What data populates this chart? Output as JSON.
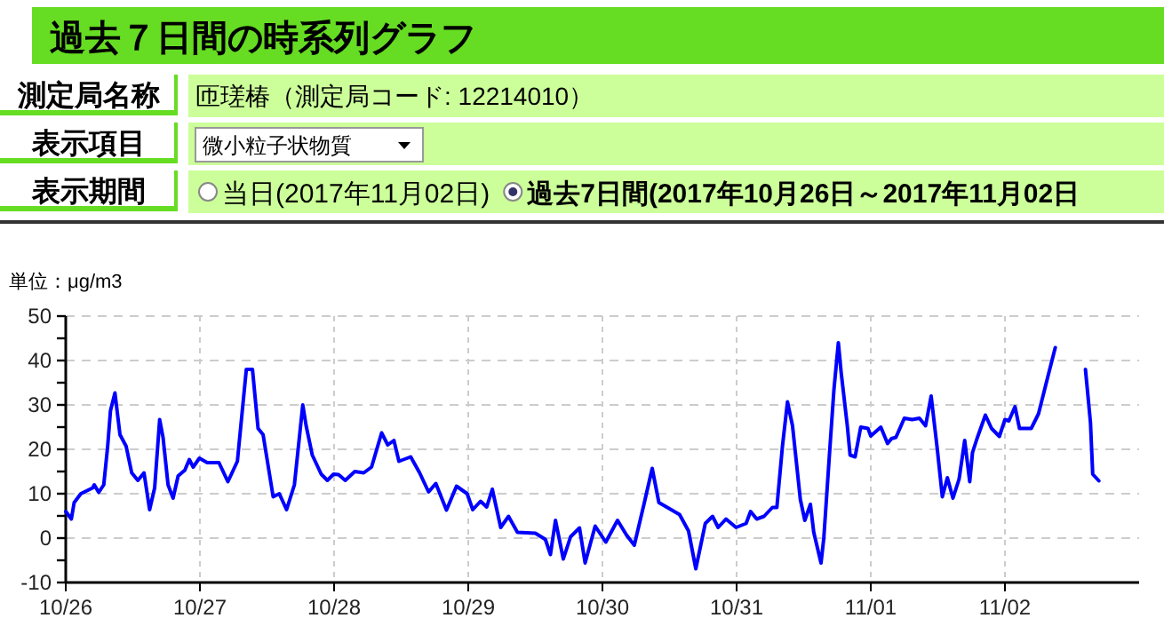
{
  "chart_data": {
    "type": "line",
    "title": "過去７日間の時系列グラフ",
    "annotations": [
      "測定局名称",
      "匝瑳椿（測定局コード: 12214010）",
      "表示項目",
      "微小粒子状物質",
      "表示期間",
      "当日(2017年11月02日)",
      "過去7日間(2017年10月26日～2017年11月02日"
    ],
    "ylabel": "単位：μg/m3",
    "xlim": [
      "2017-10-26T00:00",
      "2017-11-03T00:00"
    ],
    "xticks": [
      {
        "value": "2017-10-26",
        "label": "10/26"
      },
      {
        "value": "2017-10-27",
        "label": "10/27"
      },
      {
        "value": "2017-10-28",
        "label": "10/28"
      },
      {
        "value": "2017-10-29",
        "label": "10/29"
      },
      {
        "value": "2017-10-30",
        "label": "10/30"
      },
      {
        "value": "2017-10-31",
        "label": "10/31"
      },
      {
        "value": "2017-11-01",
        "label": "11/01"
      },
      {
        "value": "2017-11-02",
        "label": "11/02"
      }
    ],
    "ylim": [
      -10,
      50
    ],
    "yticks": [
      -10,
      {
        "value": -5,
        "label": null
      },
      0,
      {
        "value": 5,
        "label": null
      },
      10,
      {
        "value": 15,
        "label": null
      },
      20,
      {
        "value": 25,
        "label": null
      },
      30,
      {
        "value": 35,
        "label": null
      },
      40,
      {
        "value": 45,
        "label": null
      },
      50
    ],
    "grid": true,
    "line_style": "solid",
    "series": [
      {
        "color": "#0000ff",
        "x": [
          "2017-10-26T00:00",
          "2017-10-26T01:00",
          "2017-10-26T01:30",
          "2017-10-26T02:42",
          "2017-10-26T04:48",
          "2017-10-26T05:06",
          "2017-10-26T05:54",
          "2017-10-26T06:48",
          "2017-10-26T07:30",
          "2017-10-26T08:00",
          "2017-10-26T08:48",
          "2017-10-26T09:42",
          "2017-10-26T10:48",
          "2017-10-26T11:48",
          "2017-10-26T12:54",
          "2017-10-26T14:00",
          "2017-10-26T15:00",
          "2017-10-26T15:54",
          "2017-10-26T16:48",
          "2017-10-26T17:24",
          "2017-10-26T18:18",
          "2017-10-26T19:12",
          "2017-10-26T20:06",
          "2017-10-26T21:18",
          "2017-10-26T22:06",
          "2017-10-26T22:48",
          "2017-10-26T23:54",
          "2017-10-27T01:18",
          "2017-10-27T03:24",
          "2017-10-27T05:00",
          "2017-10-27T06:42",
          "2017-10-27T08:18",
          "2017-10-27T09:24",
          "2017-10-27T10:24",
          "2017-10-27T11:18",
          "2017-10-27T13:06",
          "2017-10-27T14:12",
          "2017-10-27T15:30",
          "2017-10-27T16:54",
          "2017-10-27T18:24",
          "2017-10-27T19:00",
          "2017-10-27T20:06",
          "2017-10-27T21:42",
          "2017-10-27T22:48",
          "2017-10-27T23:54",
          "2017-10-28T00:48",
          "2017-10-28T02:00",
          "2017-10-28T03:42",
          "2017-10-28T05:18",
          "2017-10-28T06:42",
          "2017-10-28T08:30",
          "2017-10-28T09:36",
          "2017-10-28T10:42",
          "2017-10-28T11:36",
          "2017-10-28T13:42",
          "2017-10-28T15:18",
          "2017-10-28T16:54",
          "2017-10-28T18:12",
          "2017-10-28T20:06",
          "2017-10-28T21:54",
          "2017-10-28T23:48",
          "2017-10-29T00:48",
          "2017-10-29T02:12",
          "2017-10-29T03:18",
          "2017-10-29T04:18",
          "2017-10-29T05:48",
          "2017-10-29T07:12",
          "2017-10-29T08:48",
          "2017-10-29T12:00",
          "2017-10-29T13:48",
          "2017-10-29T14:42",
          "2017-10-29T15:36",
          "2017-10-29T17:00",
          "2017-10-29T18:18",
          "2017-10-29T19:54",
          "2017-10-29T20:54",
          "2017-10-29T22:42",
          "2017-10-30T00:36",
          "2017-10-30T02:42",
          "2017-10-30T04:18",
          "2017-10-30T05:42",
          "2017-10-30T07:30",
          "2017-10-30T08:54",
          "2017-10-30T10:06",
          "2017-10-30T12:18",
          "2017-10-30T13:48",
          "2017-10-30T15:24",
          "2017-10-30T16:42",
          "2017-10-30T18:24",
          "2017-10-30T19:42",
          "2017-10-30T20:42",
          "2017-10-30T22:06",
          "2017-10-30T23:54",
          "2017-10-31T01:42",
          "2017-10-31T02:30",
          "2017-10-31T03:36",
          "2017-10-31T04:54",
          "2017-10-31T06:24",
          "2017-10-31T07:12",
          "2017-10-31T08:12",
          "2017-10-31T09:06",
          "2017-10-31T10:00",
          "2017-10-31T11:24",
          "2017-10-31T12:12",
          "2017-10-31T13:12",
          "2017-10-31T13:48",
          "2017-10-31T15:06",
          "2017-10-31T15:36",
          "2017-10-31T16:36",
          "2017-10-31T17:24",
          "2017-10-31T18:12",
          "2017-10-31T18:42",
          "2017-10-31T19:48",
          "2017-10-31T20:18",
          "2017-10-31T21:12",
          "2017-10-31T22:12",
          "2017-10-31T23:30",
          "2017-11-01T00:00",
          "2017-11-01T01:48",
          "2017-11-01T03:00",
          "2017-11-01T03:42",
          "2017-11-01T04:30",
          "2017-11-01T06:00",
          "2017-11-01T07:24",
          "2017-11-01T08:42",
          "2017-11-01T09:48",
          "2017-11-01T10:48",
          "2017-11-01T11:54",
          "2017-11-01T12:48",
          "2017-11-01T13:42",
          "2017-11-01T14:42",
          "2017-11-01T15:48",
          "2017-11-01T16:48",
          "2017-11-01T17:42",
          "2017-11-01T18:12",
          "2017-11-01T19:00",
          "2017-11-01T20:30",
          "2017-11-01T21:36",
          "2017-11-01T23:00",
          "2017-11-02T00:00",
          "2017-11-02T00:42",
          "2017-11-02T01:48",
          "2017-11-02T02:36",
          "2017-11-02T04:42",
          "2017-11-02T06:00",
          "2017-11-02T07:36",
          "2017-11-02T09:00",
          "2017-11-02T12:00",
          "2017-11-02T14:24",
          "2017-11-02T15:18",
          "2017-11-02T15:42",
          "2017-11-02T16:48"
        ],
        "values": [
          6,
          4.3,
          8,
          10,
          11.3,
          12,
          10.3,
          12,
          20.7,
          28.7,
          32.7,
          23.3,
          20.7,
          14.7,
          13,
          14.7,
          6.4,
          11.3,
          26.7,
          22.7,
          12,
          9,
          14,
          15.3,
          17.7,
          16,
          18,
          17,
          17,
          12.7,
          17.3,
          38,
          38,
          24.7,
          23.3,
          9.3,
          10,
          6.4,
          12,
          30,
          25.3,
          18.7,
          14.4,
          13,
          14.4,
          14.3,
          13,
          15,
          14.7,
          16,
          23.7,
          21,
          22,
          17.3,
          18.3,
          14.7,
          10.4,
          12.3,
          6.3,
          11.7,
          10,
          6.4,
          8.3,
          7,
          11,
          2.4,
          4.9,
          1.3,
          1.1,
          -0.3,
          -3.7,
          4,
          -4.7,
          0.3,
          2.3,
          -5.6,
          2.7,
          -0.9,
          4,
          0.7,
          -1.6,
          8,
          15.7,
          8,
          6.4,
          5.3,
          1.6,
          -6.9,
          3.3,
          4.9,
          2.4,
          4.3,
          2.4,
          3.3,
          6,
          4.3,
          4.9,
          6.9,
          6.9,
          20.7,
          30.7,
          25.3,
          8.7,
          4,
          7.6,
          1.3,
          -5.6,
          0,
          18.7,
          33.3,
          44,
          37.3,
          25.3,
          18.7,
          18.3,
          25,
          24.7,
          23,
          25,
          21.3,
          22.4,
          22.7,
          27,
          26.7,
          27,
          25.3,
          32,
          20,
          9.3,
          13.6,
          9,
          13.3,
          22,
          12.7,
          19.3,
          22.4,
          27.7,
          24.7,
          22.9,
          26.7,
          26.4,
          29.6,
          24.7,
          24.7,
          28,
          36,
          42.9,
          null,
          38,
          26,
          14.4,
          12.9
        ]
      }
    ]
  }
}
